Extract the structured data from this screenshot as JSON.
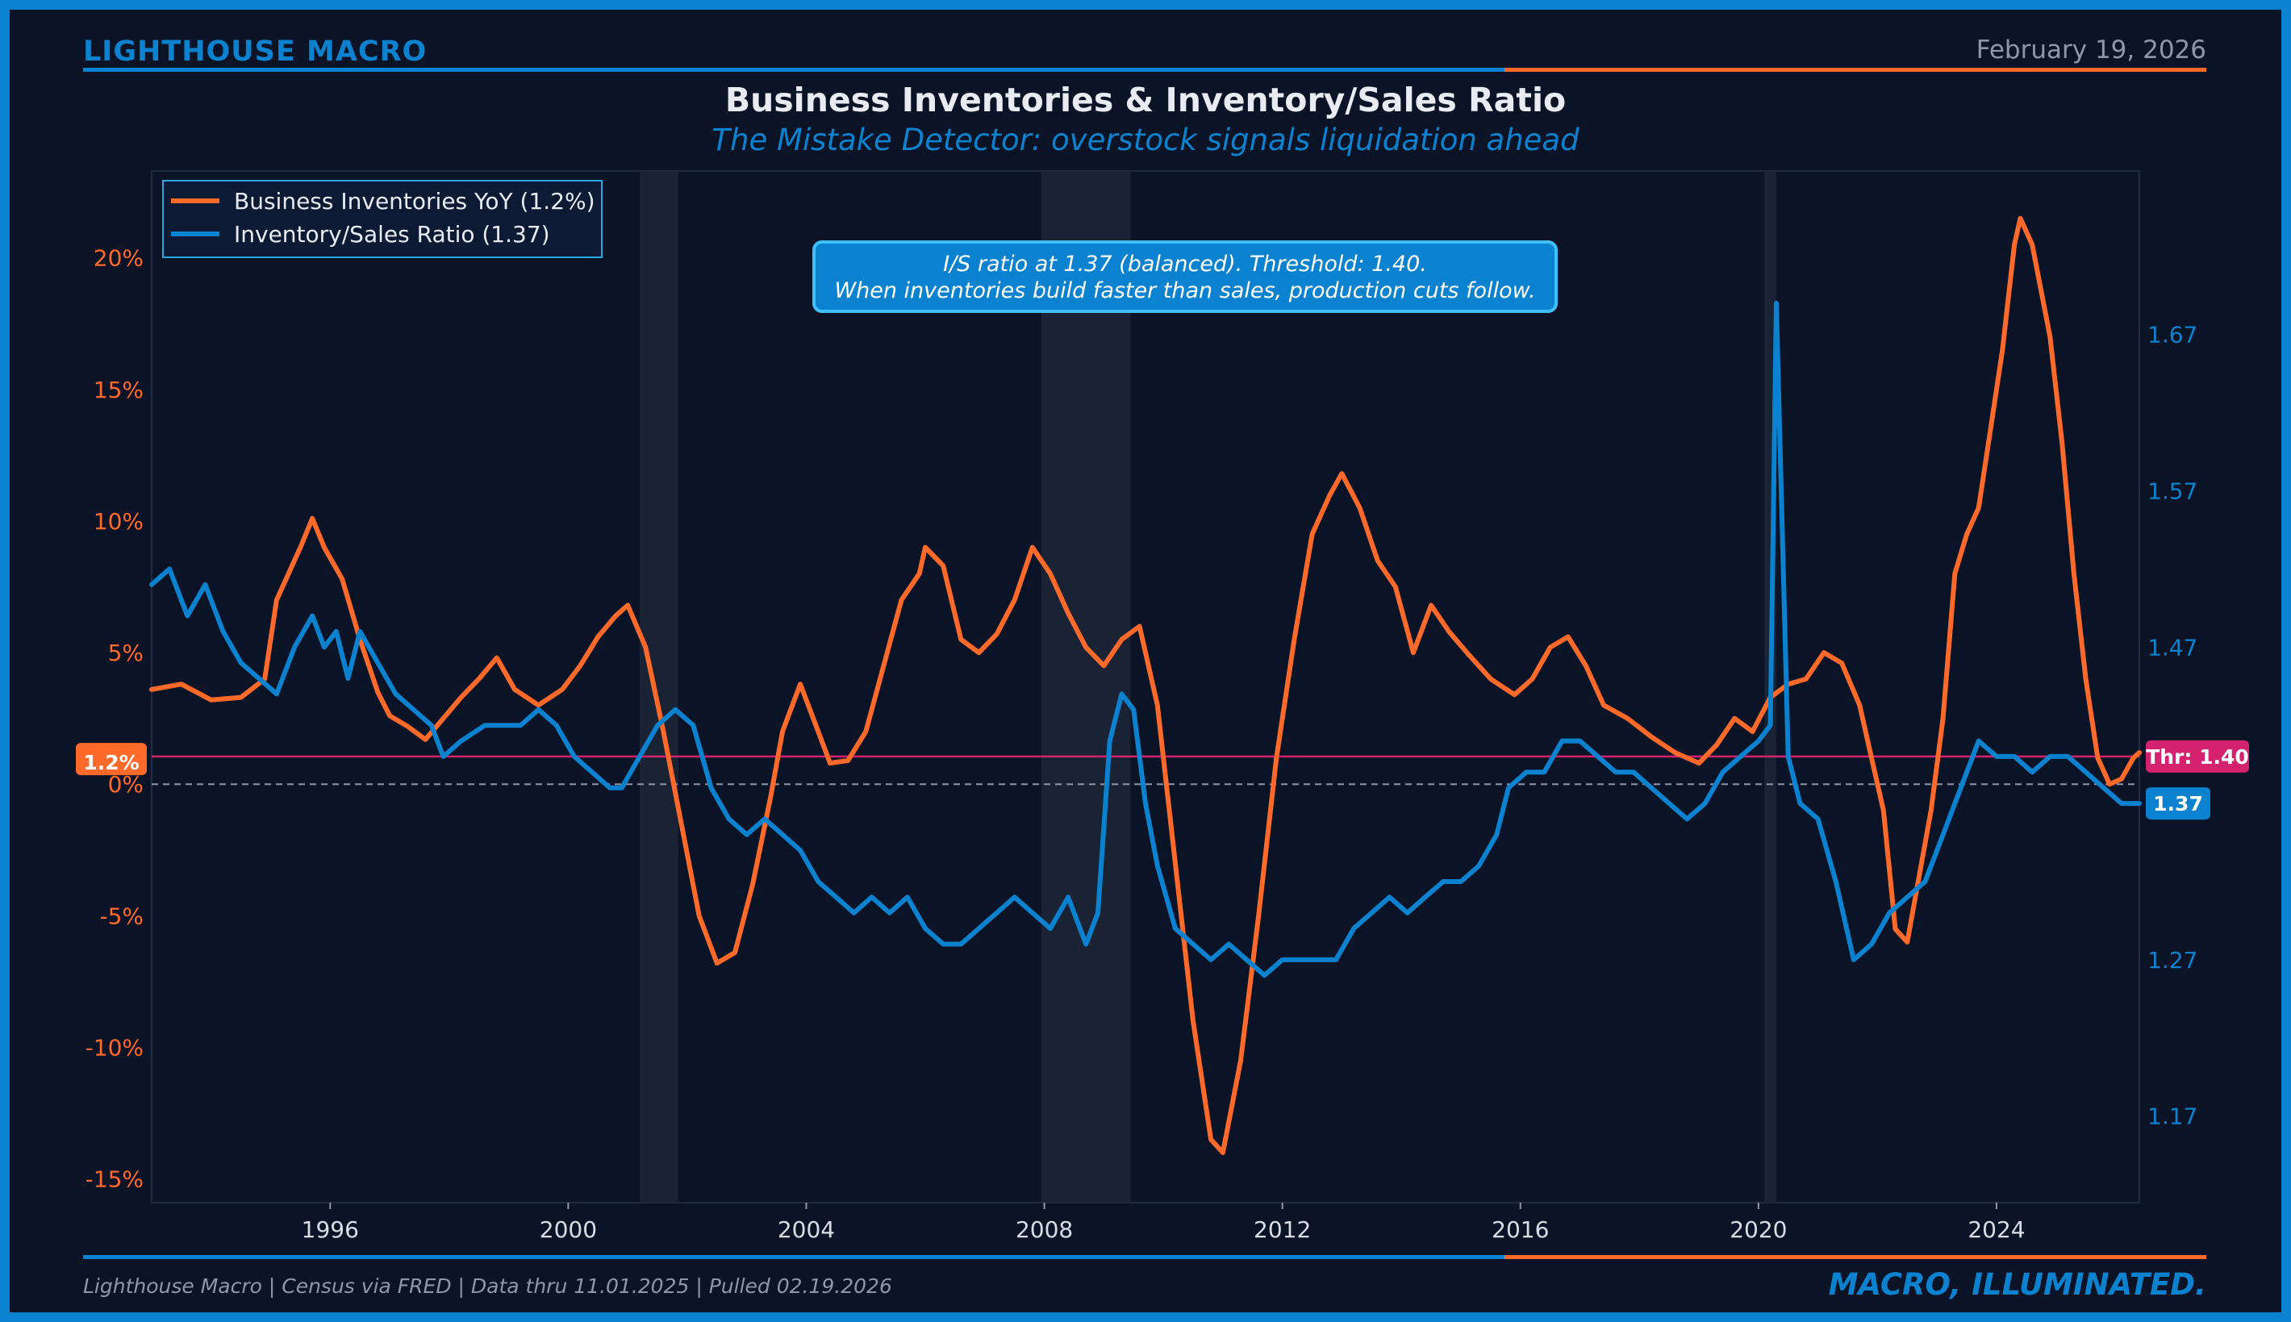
{
  "header": {
    "brand": "LIGHTHOUSE MACRO",
    "date": "February 19, 2026",
    "title": "Business Inventories & Inventory/Sales Ratio",
    "subtitle": "The Mistake Detector: overstock signals liquidation ahead"
  },
  "footer": {
    "source": "Lighthouse Macro | Census via FRED | Data thru 11.01.2025 | Pulled 02.19.2026",
    "tagline": "MACRO, ILLUMINATED."
  },
  "colors": {
    "background": "#0b1426",
    "frame": "#0a82cf",
    "orange": "#ff6a2a",
    "blue": "#0a82cf",
    "magenta": "#d4226f",
    "recession": "#1b2535"
  },
  "chart_data": {
    "type": "line",
    "grid": false,
    "legend_position": "top-left",
    "x_ticks": [
      "1996",
      "2000",
      "2004",
      "2008",
      "2012",
      "2016",
      "2020",
      "2024"
    ],
    "x_tick_values": [
      1996,
      2000,
      2004,
      2008,
      2012,
      2016,
      2020,
      2024
    ],
    "xlim": [
      1993.0,
      2026.4
    ],
    "y_left": {
      "ticks": [
        "-15%",
        "-10%",
        "-5%",
        "0%",
        "5%",
        "10%",
        "15%",
        "20%"
      ],
      "tick_values": [
        -15,
        -10,
        -5,
        0,
        5,
        10,
        15,
        20
      ],
      "ylim": [
        -15.9,
        23.3
      ]
    },
    "y_right": {
      "ticks": [
        "1.17",
        "1.27",
        "1.37",
        "1.47",
        "1.57",
        "1.67"
      ],
      "tick_values": [
        1.17,
        1.27,
        1.37,
        1.47,
        1.57,
        1.67
      ],
      "ylim": [
        1.1146,
        1.7746
      ]
    },
    "recessions": [
      [
        2001.2,
        2001.85
      ],
      [
        2007.95,
        2009.45
      ],
      [
        2020.1,
        2020.3
      ]
    ],
    "zero_line": 0,
    "threshold": {
      "value": 1.4,
      "axis": "right",
      "label": "Thr: 1.40"
    },
    "last_value_labels": {
      "left": "1.2%",
      "right": "1.37"
    },
    "annotation": {
      "line1": "I/S ratio at 1.37 (balanced). Threshold: 1.40.",
      "line2": "When inventories build faster than sales, production cuts follow."
    },
    "series": [
      {
        "name": "Business Inventories YoY (1.2%)",
        "axis": "left",
        "color": "#ff6a2a",
        "points": [
          [
            1993.0,
            3.6
          ],
          [
            1993.5,
            3.8
          ],
          [
            1994.0,
            3.2
          ],
          [
            1994.5,
            3.3
          ],
          [
            1994.9,
            4.0
          ],
          [
            1995.1,
            7.0
          ],
          [
            1995.5,
            9.0
          ],
          [
            1995.7,
            10.1
          ],
          [
            1995.9,
            9.0
          ],
          [
            1996.2,
            7.8
          ],
          [
            1996.5,
            5.5
          ],
          [
            1996.8,
            3.5
          ],
          [
            1997.0,
            2.6
          ],
          [
            1997.3,
            2.2
          ],
          [
            1997.6,
            1.7
          ],
          [
            1997.9,
            2.5
          ],
          [
            1998.2,
            3.3
          ],
          [
            1998.5,
            4.0
          ],
          [
            1998.8,
            4.8
          ],
          [
            1999.1,
            3.6
          ],
          [
            1999.5,
            3.0
          ],
          [
            1999.9,
            3.6
          ],
          [
            2000.2,
            4.5
          ],
          [
            2000.5,
            5.6
          ],
          [
            2000.8,
            6.4
          ],
          [
            2001.0,
            6.8
          ],
          [
            2001.3,
            5.2
          ],
          [
            2001.6,
            2.0
          ],
          [
            2001.9,
            -1.5
          ],
          [
            2002.2,
            -5.0
          ],
          [
            2002.5,
            -6.8
          ],
          [
            2002.8,
            -6.4
          ],
          [
            2003.1,
            -3.8
          ],
          [
            2003.4,
            -0.5
          ],
          [
            2003.6,
            2.0
          ],
          [
            2003.9,
            3.8
          ],
          [
            2004.2,
            2.0
          ],
          [
            2004.4,
            0.8
          ],
          [
            2004.7,
            0.9
          ],
          [
            2005.0,
            2.0
          ],
          [
            2005.3,
            4.5
          ],
          [
            2005.6,
            7.0
          ],
          [
            2005.9,
            8.0
          ],
          [
            2006.0,
            9.0
          ],
          [
            2006.3,
            8.3
          ],
          [
            2006.6,
            5.5
          ],
          [
            2006.9,
            5.0
          ],
          [
            2007.2,
            5.7
          ],
          [
            2007.5,
            7.0
          ],
          [
            2007.8,
            9.0
          ],
          [
            2008.1,
            8.0
          ],
          [
            2008.4,
            6.5
          ],
          [
            2008.7,
            5.2
          ],
          [
            2009.0,
            4.5
          ],
          [
            2009.3,
            5.5
          ],
          [
            2009.6,
            6.0
          ],
          [
            2009.9,
            3.0
          ],
          [
            2010.2,
            -3.0
          ],
          [
            2010.5,
            -9.0
          ],
          [
            2010.8,
            -13.5
          ],
          [
            2011.0,
            -14.0
          ],
          [
            2011.3,
            -10.5
          ],
          [
            2011.6,
            -5.0
          ],
          [
            2011.9,
            1.0
          ],
          [
            2012.2,
            5.5
          ],
          [
            2012.5,
            9.5
          ],
          [
            2012.8,
            11.0
          ],
          [
            2013.0,
            11.8
          ],
          [
            2013.3,
            10.5
          ],
          [
            2013.6,
            8.5
          ],
          [
            2013.9,
            7.5
          ],
          [
            2014.2,
            5.0
          ],
          [
            2014.5,
            6.8
          ],
          [
            2014.8,
            5.8
          ],
          [
            2015.1,
            5.0
          ],
          [
            2015.5,
            4.0
          ],
          [
            2015.9,
            3.4
          ],
          [
            2016.2,
            4.0
          ],
          [
            2016.5,
            5.2
          ],
          [
            2016.8,
            5.6
          ],
          [
            2017.1,
            4.5
          ],
          [
            2017.4,
            3.0
          ],
          [
            2017.8,
            2.5
          ],
          [
            2018.2,
            1.8
          ],
          [
            2018.6,
            1.2
          ],
          [
            2019.0,
            0.8
          ],
          [
            2019.3,
            1.5
          ],
          [
            2019.6,
            2.5
          ],
          [
            2019.9,
            2.0
          ],
          [
            2020.2,
            3.3
          ],
          [
            2020.5,
            3.8
          ],
          [
            2020.8,
            4.0
          ],
          [
            2021.1,
            5.0
          ],
          [
            2021.4,
            4.6
          ],
          [
            2021.7,
            3.0
          ],
          [
            2021.9,
            1.0
          ],
          [
            2022.1,
            -1.0
          ],
          [
            2022.3,
            -5.5
          ],
          [
            2022.5,
            -6.0
          ],
          [
            2022.7,
            -3.5
          ],
          [
            2022.9,
            -1.0
          ],
          [
            2023.1,
            2.5
          ],
          [
            2023.3,
            8.0
          ],
          [
            2023.5,
            9.5
          ],
          [
            2023.7,
            10.5
          ],
          [
            2023.9,
            13.5
          ],
          [
            2024.1,
            16.5
          ],
          [
            2024.3,
            20.5
          ],
          [
            2024.4,
            21.5
          ],
          [
            2024.6,
            20.5
          ],
          [
            2024.9,
            17.0
          ],
          [
            2025.1,
            13.0
          ],
          [
            2025.3,
            8.0
          ],
          [
            2025.5,
            4.0
          ],
          [
            2025.7,
            1.0
          ],
          [
            2025.9,
            0.0
          ],
          [
            2026.1,
            0.2
          ],
          [
            2026.3,
            1.0
          ],
          [
            2026.4,
            1.2
          ]
        ]
      },
      {
        "name": "Inventory/Sales Ratio (1.37)",
        "axis": "right",
        "color": "#0a82cf",
        "points": [
          [
            1993.0,
            1.51
          ],
          [
            1993.3,
            1.52
          ],
          [
            1993.6,
            1.49
          ],
          [
            1993.9,
            1.51
          ],
          [
            1994.2,
            1.48
          ],
          [
            1994.5,
            1.46
          ],
          [
            1994.8,
            1.45
          ],
          [
            1995.1,
            1.44
          ],
          [
            1995.4,
            1.47
          ],
          [
            1995.7,
            1.49
          ],
          [
            1995.9,
            1.47
          ],
          [
            1996.1,
            1.48
          ],
          [
            1996.3,
            1.45
          ],
          [
            1996.5,
            1.48
          ],
          [
            1996.8,
            1.46
          ],
          [
            1997.1,
            1.44
          ],
          [
            1997.4,
            1.43
          ],
          [
            1997.7,
            1.42
          ],
          [
            1997.9,
            1.4
          ],
          [
            1998.2,
            1.41
          ],
          [
            1998.6,
            1.42
          ],
          [
            1998.9,
            1.42
          ],
          [
            1999.2,
            1.42
          ],
          [
            1999.5,
            1.43
          ],
          [
            1999.8,
            1.42
          ],
          [
            2000.1,
            1.4
          ],
          [
            2000.4,
            1.39
          ],
          [
            2000.7,
            1.38
          ],
          [
            2000.9,
            1.38
          ],
          [
            2001.2,
            1.4
          ],
          [
            2001.5,
            1.42
          ],
          [
            2001.8,
            1.43
          ],
          [
            2002.1,
            1.42
          ],
          [
            2002.4,
            1.38
          ],
          [
            2002.7,
            1.36
          ],
          [
            2003.0,
            1.35
          ],
          [
            2003.3,
            1.36
          ],
          [
            2003.6,
            1.35
          ],
          [
            2003.9,
            1.34
          ],
          [
            2004.2,
            1.32
          ],
          [
            2004.5,
            1.31
          ],
          [
            2004.8,
            1.3
          ],
          [
            2005.1,
            1.31
          ],
          [
            2005.4,
            1.3
          ],
          [
            2005.7,
            1.31
          ],
          [
            2006.0,
            1.29
          ],
          [
            2006.3,
            1.28
          ],
          [
            2006.6,
            1.28
          ],
          [
            2006.9,
            1.29
          ],
          [
            2007.2,
            1.3
          ],
          [
            2007.5,
            1.31
          ],
          [
            2007.8,
            1.3
          ],
          [
            2008.1,
            1.29
          ],
          [
            2008.4,
            1.31
          ],
          [
            2008.7,
            1.28
          ],
          [
            2008.9,
            1.3
          ],
          [
            2009.1,
            1.41
          ],
          [
            2009.3,
            1.44
          ],
          [
            2009.5,
            1.43
          ],
          [
            2009.7,
            1.37
          ],
          [
            2009.9,
            1.33
          ],
          [
            2010.2,
            1.29
          ],
          [
            2010.5,
            1.28
          ],
          [
            2010.8,
            1.27
          ],
          [
            2011.1,
            1.28
          ],
          [
            2011.4,
            1.27
          ],
          [
            2011.7,
            1.26
          ],
          [
            2012.0,
            1.27
          ],
          [
            2012.3,
            1.27
          ],
          [
            2012.6,
            1.27
          ],
          [
            2012.9,
            1.27
          ],
          [
            2013.2,
            1.29
          ],
          [
            2013.5,
            1.3
          ],
          [
            2013.8,
            1.31
          ],
          [
            2014.1,
            1.3
          ],
          [
            2014.4,
            1.31
          ],
          [
            2014.7,
            1.32
          ],
          [
            2015.0,
            1.32
          ],
          [
            2015.3,
            1.33
          ],
          [
            2015.6,
            1.35
          ],
          [
            2015.8,
            1.38
          ],
          [
            2016.1,
            1.39
          ],
          [
            2016.4,
            1.39
          ],
          [
            2016.7,
            1.41
          ],
          [
            2017.0,
            1.41
          ],
          [
            2017.3,
            1.4
          ],
          [
            2017.6,
            1.39
          ],
          [
            2017.9,
            1.39
          ],
          [
            2018.2,
            1.38
          ],
          [
            2018.5,
            1.37
          ],
          [
            2018.8,
            1.36
          ],
          [
            2019.1,
            1.37
          ],
          [
            2019.4,
            1.39
          ],
          [
            2019.7,
            1.4
          ],
          [
            2020.0,
            1.41
          ],
          [
            2020.2,
            1.42
          ],
          [
            2020.3,
            1.69
          ],
          [
            2020.5,
            1.4
          ],
          [
            2020.7,
            1.37
          ],
          [
            2021.0,
            1.36
          ],
          [
            2021.3,
            1.32
          ],
          [
            2021.6,
            1.27
          ],
          [
            2021.9,
            1.28
          ],
          [
            2022.2,
            1.3
          ],
          [
            2022.5,
            1.31
          ],
          [
            2022.8,
            1.32
          ],
          [
            2023.1,
            1.35
          ],
          [
            2023.4,
            1.38
          ],
          [
            2023.7,
            1.41
          ],
          [
            2024.0,
            1.4
          ],
          [
            2024.3,
            1.4
          ],
          [
            2024.6,
            1.39
          ],
          [
            2024.9,
            1.4
          ],
          [
            2025.2,
            1.4
          ],
          [
            2025.5,
            1.39
          ],
          [
            2025.8,
            1.38
          ],
          [
            2026.1,
            1.37
          ],
          [
            2026.4,
            1.37
          ]
        ]
      }
    ]
  }
}
